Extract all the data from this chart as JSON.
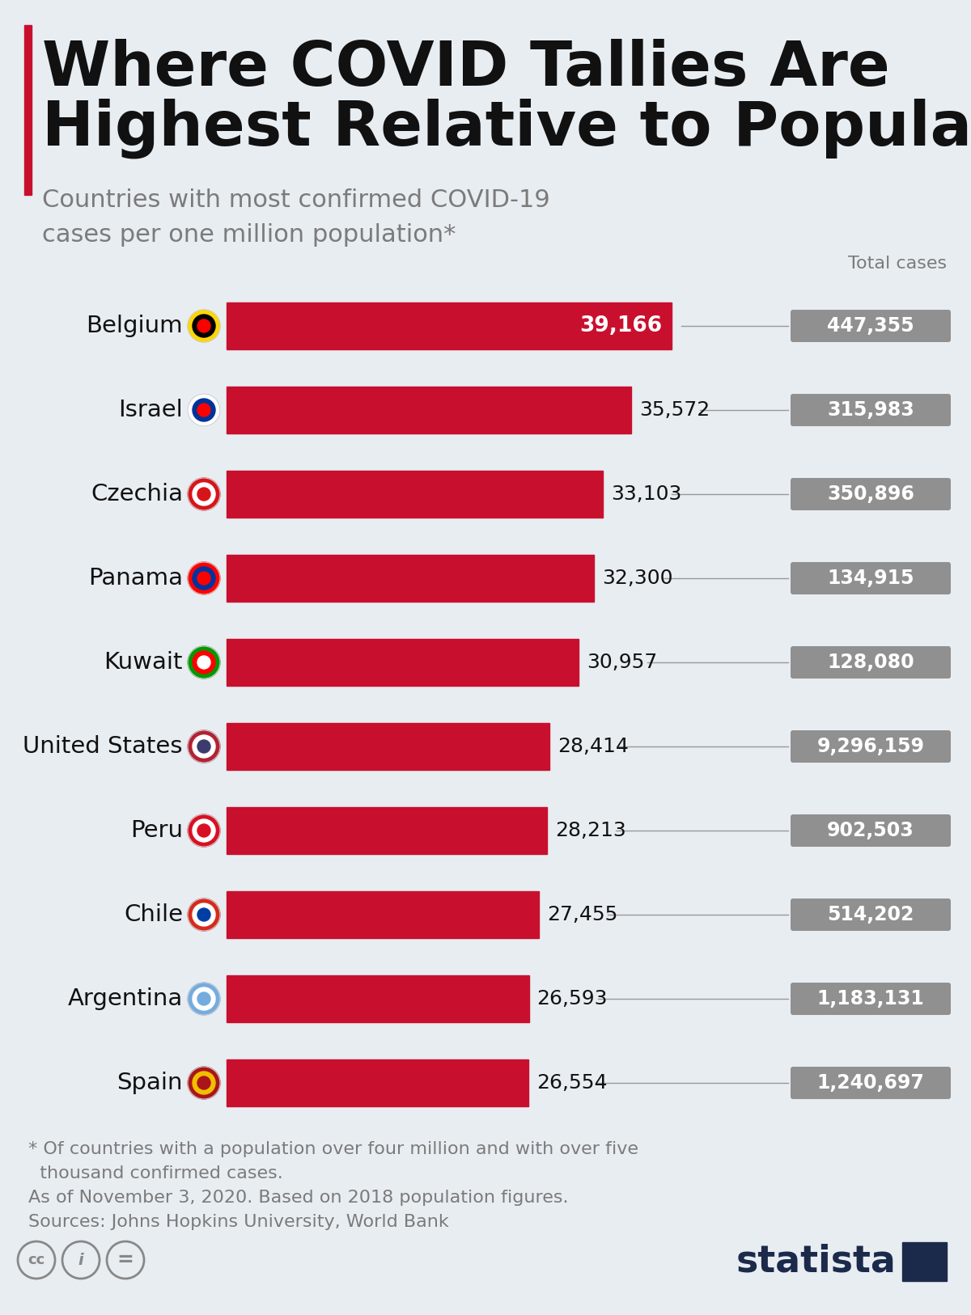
{
  "title_line1": "Where COVID Tallies Are",
  "title_line2": "Highest Relative to Population",
  "subtitle": "Countries with most confirmed COVID-19\ncases per one million population*",
  "total_cases_label": "Total cases",
  "countries": [
    "Belgium",
    "Israel",
    "Czechia",
    "Panama",
    "Kuwait",
    "United States",
    "Peru",
    "Chile",
    "Argentina",
    "Spain"
  ],
  "values": [
    39166,
    35572,
    33103,
    32300,
    30957,
    28414,
    28213,
    27455,
    26593,
    26554
  ],
  "value_labels": [
    "39,166",
    "35,572",
    "33,103",
    "32,300",
    "30,957",
    "28,414",
    "28,213",
    "27,455",
    "26,593",
    "26,554"
  ],
  "total_cases": [
    "447,355",
    "315,983",
    "350,896",
    "134,915",
    "128,080",
    "9,296,159",
    "902,503",
    "514,202",
    "1,183,131",
    "1,240,697"
  ],
  "bar_color": "#C8102E",
  "total_box_color": "#909090",
  "bg_color": "#E8EDF2",
  "title_color": "#111111",
  "subtitle_color": "#7B7B7B",
  "country_label_color": "#111111",
  "footnote_color": "#7B7B7B",
  "red_accent_color": "#C8102E",
  "statista_color": "#1B2A4A",
  "line_color": "#999999",
  "footnote1": "* Of countries with a population over four million and with over five",
  "footnote2": "  thousand confirmed cases.",
  "footnote3": "As of November 3, 2020. Based on 2018 population figures.",
  "footnote4": "Sources: Johns Hopkins University, World Bank",
  "flag_colors": [
    [
      "#FFD700",
      "#000000",
      "#FF0000"
    ],
    [
      "#FFFFFF",
      "#003399",
      "#FF0000"
    ],
    [
      "#D7141A",
      "#FFFFFF",
      "#D7141A"
    ],
    [
      "#FF0000",
      "#0033A0",
      "#FF0000"
    ],
    [
      "#009900",
      "#FF0000",
      "#FFFFFF"
    ],
    [
      "#B22234",
      "#FFFFFF",
      "#3C3B6E"
    ],
    [
      "#D91023",
      "#FFFFFF",
      "#D91023"
    ],
    [
      "#D52B1E",
      "#FFFFFF",
      "#003DA5"
    ],
    [
      "#74ACDF",
      "#FFFFFF",
      "#74ACDF"
    ],
    [
      "#AA151B",
      "#F1BF00",
      "#AA151B"
    ]
  ]
}
